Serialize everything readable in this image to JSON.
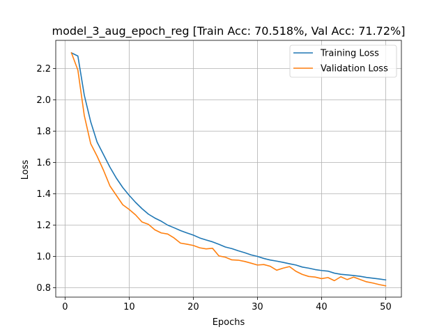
{
  "chart_data": {
    "type": "line",
    "title": "model_3_aug_epoch_reg [Train Acc: 70.518%, Val Acc: 71.72%]",
    "xlabel": "Epochs",
    "ylabel": "Loss",
    "xlim": [
      -1.45,
      52.45
    ],
    "ylim": [
      0.74,
      2.38
    ],
    "xticks": [
      0,
      10,
      20,
      30,
      40,
      50
    ],
    "yticks": [
      0.8,
      1.0,
      1.2,
      1.4,
      1.6,
      1.8,
      2.0,
      2.2
    ],
    "grid": true,
    "legend_position": "top-right",
    "x": [
      1,
      2,
      3,
      4,
      5,
      6,
      7,
      8,
      9,
      10,
      11,
      12,
      13,
      14,
      15,
      16,
      17,
      18,
      19,
      20,
      21,
      22,
      23,
      24,
      25,
      26,
      27,
      28,
      29,
      30,
      31,
      32,
      33,
      34,
      35,
      36,
      37,
      38,
      39,
      40,
      41,
      42,
      43,
      44,
      45,
      46,
      47,
      48,
      49,
      50
    ],
    "series": [
      {
        "name": "Training Loss",
        "color": "#1f77b4",
        "values": [
          2.3,
          2.28,
          2.03,
          1.86,
          1.73,
          1.65,
          1.57,
          1.5,
          1.44,
          1.39,
          1.345,
          1.305,
          1.27,
          1.245,
          1.225,
          1.2,
          1.183,
          1.165,
          1.15,
          1.136,
          1.118,
          1.105,
          1.093,
          1.077,
          1.06,
          1.05,
          1.036,
          1.024,
          1.01,
          1.0,
          0.987,
          0.977,
          0.97,
          0.962,
          0.953,
          0.945,
          0.932,
          0.925,
          0.916,
          0.91,
          0.906,
          0.893,
          0.886,
          0.882,
          0.878,
          0.873,
          0.866,
          0.861,
          0.856,
          0.85
        ]
      },
      {
        "name": "Validation Loss",
        "color": "#ff7f0e",
        "values": [
          2.3,
          2.19,
          1.9,
          1.72,
          1.64,
          1.55,
          1.45,
          1.39,
          1.33,
          1.3,
          1.265,
          1.22,
          1.205,
          1.17,
          1.15,
          1.143,
          1.118,
          1.085,
          1.078,
          1.07,
          1.055,
          1.048,
          1.052,
          1.003,
          0.995,
          0.978,
          0.976,
          0.968,
          0.957,
          0.945,
          0.948,
          0.937,
          0.912,
          0.925,
          0.935,
          0.905,
          0.885,
          0.872,
          0.868,
          0.858,
          0.865,
          0.845,
          0.87,
          0.852,
          0.868,
          0.853,
          0.838,
          0.83,
          0.82,
          0.812
        ]
      }
    ]
  }
}
